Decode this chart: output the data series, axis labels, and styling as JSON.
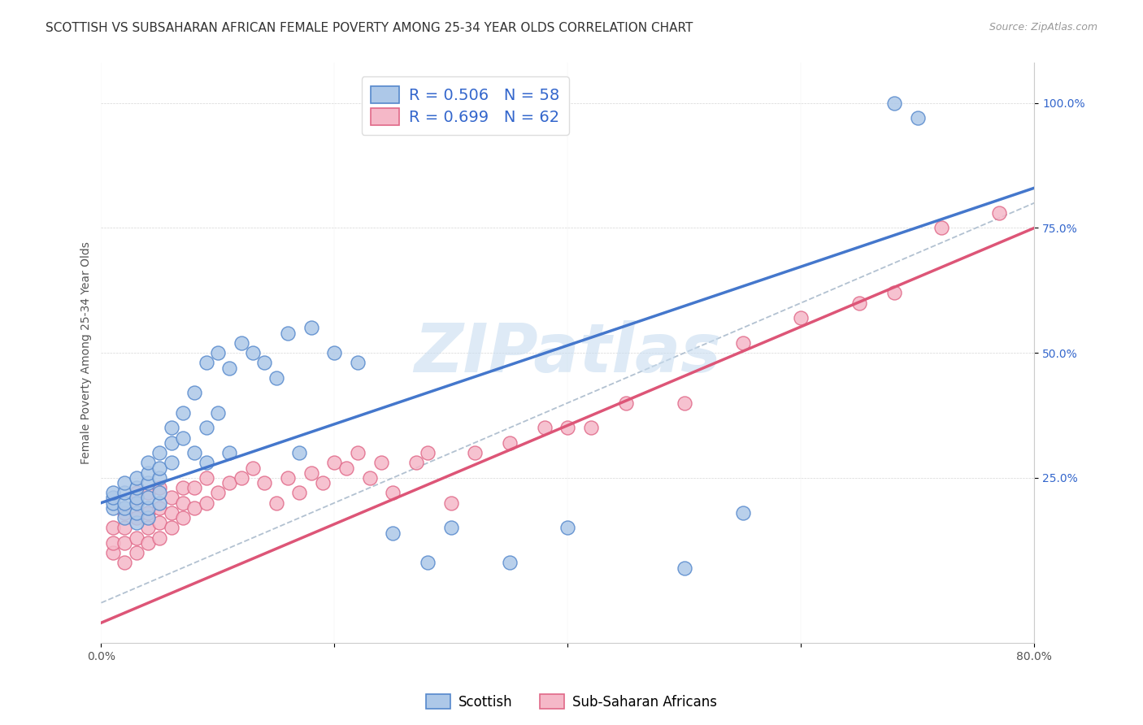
{
  "title": "SCOTTISH VS SUBSAHARAN AFRICAN FEMALE POVERTY AMONG 25-34 YEAR OLDS CORRELATION CHART",
  "source": "Source: ZipAtlas.com",
  "ylabel": "Female Poverty Among 25-34 Year Olds",
  "xlim": [
    0.0,
    0.8
  ],
  "ylim": [
    -0.08,
    1.08
  ],
  "xtick_positions": [
    0.0,
    0.2,
    0.4,
    0.6,
    0.8
  ],
  "xticklabels": [
    "0.0%",
    "",
    "",
    "",
    "80.0%"
  ],
  "ytick_positions": [
    0.25,
    0.5,
    0.75,
    1.0
  ],
  "ytick_labels": [
    "25.0%",
    "50.0%",
    "75.0%",
    "100.0%"
  ],
  "scottish_color": "#adc8e8",
  "subsaharan_color": "#f5b8c8",
  "scottish_edge": "#5588cc",
  "subsaharan_edge": "#e06888",
  "blue_line_color": "#4477cc",
  "pink_line_color": "#dd5577",
  "grey_line_color": "#aabbcc",
  "watermark_color": "#c8ddf0",
  "watermark_text": "ZIPatlas",
  "legend_color": "#3366cc",
  "background_color": "#ffffff",
  "title_fontsize": 11,
  "axis_label_fontsize": 10,
  "tick_fontsize": 10,
  "blue_line_x0": 0.0,
  "blue_line_y0": 0.2,
  "blue_line_x1": 0.8,
  "blue_line_y1": 0.83,
  "pink_line_x0": 0.0,
  "pink_line_y0": -0.04,
  "pink_line_x1": 0.8,
  "pink_line_y1": 0.75,
  "scottish_x": [
    0.01,
    0.01,
    0.01,
    0.01,
    0.02,
    0.02,
    0.02,
    0.02,
    0.02,
    0.03,
    0.03,
    0.03,
    0.03,
    0.03,
    0.03,
    0.04,
    0.04,
    0.04,
    0.04,
    0.04,
    0.04,
    0.05,
    0.05,
    0.05,
    0.05,
    0.05,
    0.06,
    0.06,
    0.06,
    0.07,
    0.07,
    0.08,
    0.08,
    0.09,
    0.09,
    0.09,
    0.1,
    0.1,
    0.11,
    0.11,
    0.12,
    0.13,
    0.14,
    0.15,
    0.16,
    0.17,
    0.18,
    0.2,
    0.22,
    0.25,
    0.28,
    0.3,
    0.35,
    0.4,
    0.5,
    0.55,
    0.68,
    0.7
  ],
  "scottish_y": [
    0.19,
    0.2,
    0.21,
    0.22,
    0.17,
    0.19,
    0.2,
    0.22,
    0.24,
    0.16,
    0.18,
    0.2,
    0.21,
    0.23,
    0.25,
    0.17,
    0.19,
    0.21,
    0.24,
    0.26,
    0.28,
    0.2,
    0.22,
    0.25,
    0.27,
    0.3,
    0.28,
    0.32,
    0.35,
    0.33,
    0.38,
    0.3,
    0.42,
    0.28,
    0.35,
    0.48,
    0.38,
    0.5,
    0.3,
    0.47,
    0.52,
    0.5,
    0.48,
    0.45,
    0.54,
    0.3,
    0.55,
    0.5,
    0.48,
    0.14,
    0.08,
    0.15,
    0.08,
    0.15,
    0.07,
    0.18,
    1.0,
    0.97
  ],
  "subsaharan_x": [
    0.01,
    0.01,
    0.01,
    0.02,
    0.02,
    0.02,
    0.02,
    0.03,
    0.03,
    0.03,
    0.03,
    0.03,
    0.04,
    0.04,
    0.04,
    0.04,
    0.05,
    0.05,
    0.05,
    0.05,
    0.06,
    0.06,
    0.06,
    0.07,
    0.07,
    0.07,
    0.08,
    0.08,
    0.09,
    0.09,
    0.1,
    0.11,
    0.12,
    0.13,
    0.14,
    0.15,
    0.16,
    0.17,
    0.18,
    0.19,
    0.2,
    0.21,
    0.22,
    0.23,
    0.24,
    0.25,
    0.27,
    0.28,
    0.3,
    0.32,
    0.35,
    0.38,
    0.4,
    0.42,
    0.45,
    0.5,
    0.55,
    0.6,
    0.65,
    0.68,
    0.72,
    0.77
  ],
  "subsaharan_y": [
    0.1,
    0.12,
    0.15,
    0.08,
    0.12,
    0.15,
    0.18,
    0.1,
    0.13,
    0.17,
    0.2,
    0.22,
    0.12,
    0.15,
    0.18,
    0.22,
    0.13,
    0.16,
    0.19,
    0.23,
    0.15,
    0.18,
    0.21,
    0.17,
    0.2,
    0.23,
    0.19,
    0.23,
    0.2,
    0.25,
    0.22,
    0.24,
    0.25,
    0.27,
    0.24,
    0.2,
    0.25,
    0.22,
    0.26,
    0.24,
    0.28,
    0.27,
    0.3,
    0.25,
    0.28,
    0.22,
    0.28,
    0.3,
    0.2,
    0.3,
    0.32,
    0.35,
    0.35,
    0.35,
    0.4,
    0.4,
    0.52,
    0.57,
    0.6,
    0.62,
    0.75,
    0.78
  ]
}
